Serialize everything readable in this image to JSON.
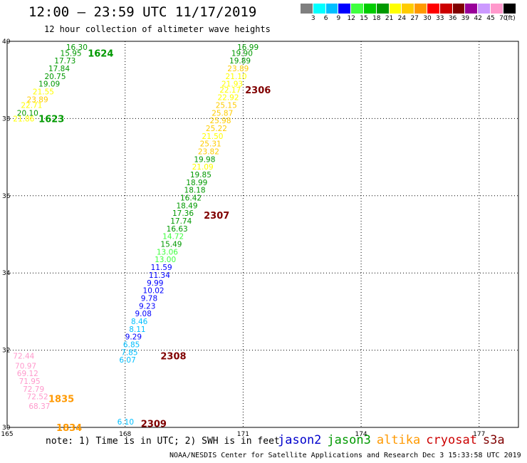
{
  "header": {
    "title": "12:00 – 23:59 UTC 11/17/2019",
    "subtitle": "12 hour collection of altimeter wave heights"
  },
  "colorbar": {
    "unit": "(ft)",
    "colors": [
      "#7f7f7f",
      "#00ffff",
      "#00bfff",
      "#0000ff",
      "#3fff3f",
      "#00cc00",
      "#009900",
      "#ffff00",
      "#ffcc00",
      "#ff9900",
      "#ff0000",
      "#cc0000",
      "#800000",
      "#990099",
      "#cc99ff",
      "#ff99cc",
      "#000000"
    ],
    "labels": [
      "3",
      "6",
      "9",
      "12",
      "15",
      "18",
      "21",
      "24",
      "27",
      "30",
      "33",
      "36",
      "39",
      "42",
      "45",
      "70"
    ]
  },
  "map": {
    "lon_min": 165,
    "lon_max": 178,
    "lat_min": 30,
    "lat_max": 40,
    "lon_ticks": [
      "165",
      "168",
      "171",
      "174",
      "177"
    ],
    "lat_ticks": [
      "40",
      "38",
      "36",
      "34",
      "32",
      "30"
    ]
  },
  "legend": {
    "note": "note: 1) Time is in UTC; 2) SWH is in feet",
    "satellites": [
      {
        "name": "jason2",
        "color": "#0000cc"
      },
      {
        "name": "jason3",
        "color": "#009900"
      },
      {
        "name": "altika",
        "color": "#ff9900"
      },
      {
        "name": "cryosat",
        "color": "#cc0000"
      },
      {
        "name": "s3a",
        "color": "#800000"
      }
    ]
  },
  "credit": "NOAA/NESDIS Center for Satellite Applications and Research    Dec  3 15:33:58 UTC 2019",
  "chart_data": {
    "type": "scatter",
    "time_labels": [
      {
        "text": "1624",
        "lon": 167.05,
        "lat": 39.7,
        "color": "#009900"
      },
      {
        "text": "1623",
        "lon": 165.8,
        "lat": 38.0,
        "color": "#009900"
      },
      {
        "text": "2306",
        "lon": 171.05,
        "lat": 38.75,
        "color": "#800000"
      },
      {
        "text": "2307",
        "lon": 170.0,
        "lat": 35.5,
        "color": "#800000"
      },
      {
        "text": "2308",
        "lon": 168.9,
        "lat": 31.85,
        "color": "#800000"
      },
      {
        "text": "2309",
        "lon": 168.4,
        "lat": 30.1,
        "color": "#800000"
      },
      {
        "text": "1835",
        "lon": 166.05,
        "lat": 30.75,
        "color": "#ff9900"
      },
      {
        "text": "1834",
        "lon": 166.25,
        "lat": 30.0,
        "color": "#ff9900"
      }
    ],
    "tracks": [
      {
        "name": "pass-1623-1624",
        "points": [
          {
            "swh": "16.30",
            "lon": 166.5,
            "lat": 39.85,
            "color": "#009900"
          },
          {
            "swh": "15.95",
            "lon": 166.35,
            "lat": 39.7,
            "color": "#009900"
          },
          {
            "swh": "17.73",
            "lon": 166.2,
            "lat": 39.5,
            "color": "#009900"
          },
          {
            "swh": "17.84",
            "lon": 166.05,
            "lat": 39.3,
            "color": "#009900"
          },
          {
            "swh": "20.75",
            "lon": 165.95,
            "lat": 39.1,
            "color": "#009900"
          },
          {
            "swh": "19.09",
            "lon": 165.8,
            "lat": 38.9,
            "color": "#009900"
          },
          {
            "swh": "21.55",
            "lon": 165.65,
            "lat": 38.7,
            "color": "#ffff00"
          },
          {
            "swh": "23.89",
            "lon": 165.5,
            "lat": 38.5,
            "color": "#ffcc00"
          },
          {
            "swh": "22.71",
            "lon": 165.35,
            "lat": 38.35,
            "color": "#ffff00"
          },
          {
            "swh": "20.10",
            "lon": 165.25,
            "lat": 38.15,
            "color": "#009900"
          },
          {
            "swh": "21.86",
            "lon": 165.15,
            "lat": 38.0,
            "color": "#ffff00"
          }
        ]
      },
      {
        "name": "pass-2306-2309",
        "points": [
          {
            "swh": "16.99",
            "lon": 170.85,
            "lat": 39.85,
            "color": "#009900"
          },
          {
            "swh": "19.90",
            "lon": 170.7,
            "lat": 39.7,
            "color": "#009900"
          },
          {
            "swh": "19.89",
            "lon": 170.65,
            "lat": 39.5,
            "color": "#009900"
          },
          {
            "swh": "23.89",
            "lon": 170.6,
            "lat": 39.3,
            "color": "#ffcc00"
          },
          {
            "swh": "21.10",
            "lon": 170.55,
            "lat": 39.1,
            "color": "#ffff00"
          },
          {
            "swh": "21.93",
            "lon": 170.45,
            "lat": 38.9,
            "color": "#ffff00"
          },
          {
            "swh": "22.17",
            "lon": 170.4,
            "lat": 38.75,
            "color": "#ffff00"
          },
          {
            "swh": "22.92",
            "lon": 170.35,
            "lat": 38.55,
            "color": "#ffff00"
          },
          {
            "swh": "25.15",
            "lon": 170.3,
            "lat": 38.35,
            "color": "#ffcc00"
          },
          {
            "swh": "25.87",
            "lon": 170.2,
            "lat": 38.15,
            "color": "#ffcc00"
          },
          {
            "swh": "25.98",
            "lon": 170.15,
            "lat": 37.95,
            "color": "#ffcc00"
          },
          {
            "swh": "25.22",
            "lon": 170.05,
            "lat": 37.75,
            "color": "#ffcc00"
          },
          {
            "swh": "21.50",
            "lon": 169.95,
            "lat": 37.55,
            "color": "#ffff00"
          },
          {
            "swh": "25.31",
            "lon": 169.9,
            "lat": 37.35,
            "color": "#ffcc00"
          },
          {
            "swh": "23.82",
            "lon": 169.85,
            "lat": 37.15,
            "color": "#ffcc00"
          },
          {
            "swh": "19.98",
            "lon": 169.75,
            "lat": 36.95,
            "color": "#009900"
          },
          {
            "swh": "21.09",
            "lon": 169.7,
            "lat": 36.75,
            "color": "#ffff00"
          },
          {
            "swh": "19.85",
            "lon": 169.65,
            "lat": 36.55,
            "color": "#009900"
          },
          {
            "swh": "18.99",
            "lon": 169.55,
            "lat": 36.35,
            "color": "#009900"
          },
          {
            "swh": "18.18",
            "lon": 169.5,
            "lat": 36.15,
            "color": "#009900"
          },
          {
            "swh": "16.42",
            "lon": 169.4,
            "lat": 35.95,
            "color": "#009900"
          },
          {
            "swh": "18.49",
            "lon": 169.3,
            "lat": 35.75,
            "color": "#009900"
          },
          {
            "swh": "17.36",
            "lon": 169.2,
            "lat": 35.55,
            "color": "#009900"
          },
          {
            "swh": "17.74",
            "lon": 169.15,
            "lat": 35.35,
            "color": "#009900"
          },
          {
            "swh": "16.63",
            "lon": 169.05,
            "lat": 35.15,
            "color": "#009900"
          },
          {
            "swh": "14.72",
            "lon": 168.95,
            "lat": 34.95,
            "color": "#3fff3f"
          },
          {
            "swh": "15.49",
            "lon": 168.9,
            "lat": 34.75,
            "color": "#009900"
          },
          {
            "swh": "13.06",
            "lon": 168.8,
            "lat": 34.55,
            "color": "#3fff3f"
          },
          {
            "swh": "13.00",
            "lon": 168.75,
            "lat": 34.35,
            "color": "#3fff3f"
          },
          {
            "swh": "11.59",
            "lon": 168.65,
            "lat": 34.15,
            "color": "#0000ff"
          },
          {
            "swh": "11.34",
            "lon": 168.6,
            "lat": 33.95,
            "color": "#0000ff"
          },
          {
            "swh": "9.99",
            "lon": 168.55,
            "lat": 33.75,
            "color": "#0000ff"
          },
          {
            "swh": "10.02",
            "lon": 168.45,
            "lat": 33.55,
            "color": "#0000ff"
          },
          {
            "swh": "9.78",
            "lon": 168.4,
            "lat": 33.35,
            "color": "#0000ff"
          },
          {
            "swh": "9.23",
            "lon": 168.35,
            "lat": 33.15,
            "color": "#0000ff"
          },
          {
            "swh": "9.08",
            "lon": 168.25,
            "lat": 32.95,
            "color": "#0000ff"
          },
          {
            "swh": "8.46",
            "lon": 168.15,
            "lat": 32.75,
            "color": "#00bfff"
          },
          {
            "swh": "8.11",
            "lon": 168.1,
            "lat": 32.55,
            "color": "#00bfff"
          },
          {
            "swh": "9.29",
            "lon": 168.0,
            "lat": 32.35,
            "color": "#0000ff"
          },
          {
            "swh": "6.85",
            "lon": 167.95,
            "lat": 32.15,
            "color": "#00bfff"
          },
          {
            "swh": "7.85",
            "lon": 167.9,
            "lat": 31.95,
            "color": "#00bfff"
          },
          {
            "swh": "6.07",
            "lon": 167.85,
            "lat": 31.75,
            "color": "#00bfff"
          },
          {
            "swh": "6.10",
            "lon": 167.8,
            "lat": 30.15,
            "color": "#00bfff"
          }
        ]
      },
      {
        "name": "pass-1834-1835",
        "points": [
          {
            "swh": "72.44",
            "lon": 165.15,
            "lat": 31.85,
            "color": "#ff99cc"
          },
          {
            "swh": "70.97",
            "lon": 165.2,
            "lat": 31.6,
            "color": "#ff99cc"
          },
          {
            "swh": "69.12",
            "lon": 165.25,
            "lat": 31.4,
            "color": "#ff99cc"
          },
          {
            "swh": "71.95",
            "lon": 165.3,
            "lat": 31.2,
            "color": "#ff99cc"
          },
          {
            "swh": "72.79",
            "lon": 165.4,
            "lat": 31.0,
            "color": "#ff99cc"
          },
          {
            "swh": "72.52",
            "lon": 165.5,
            "lat": 30.8,
            "color": "#ff99cc"
          },
          {
            "swh": "68.37",
            "lon": 165.55,
            "lat": 30.55,
            "color": "#ff99cc"
          }
        ]
      }
    ]
  }
}
